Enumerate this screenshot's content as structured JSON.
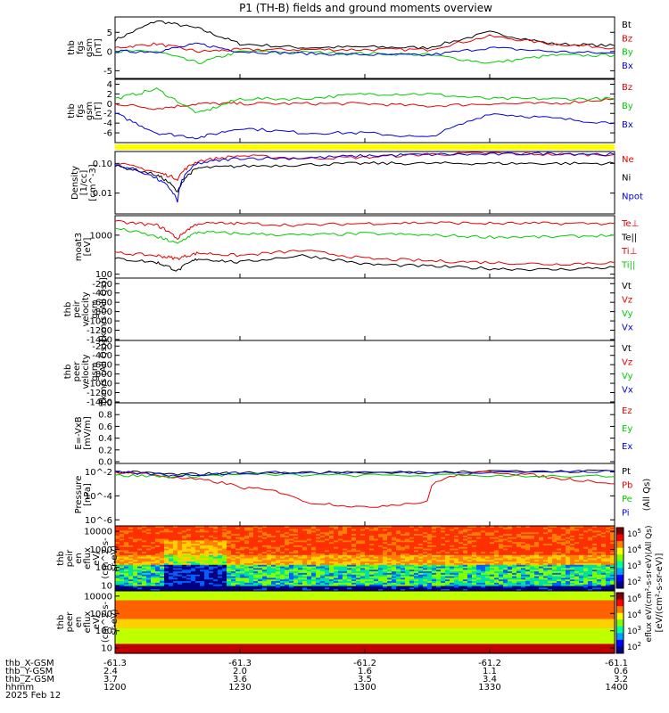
{
  "title": "P1 (TH-B) fields and ground moments overview",
  "colors": {
    "black": "#000000",
    "red": "#e60000",
    "green": "#00cc00",
    "blue": "#0000e6",
    "yellow": "#ffff00"
  },
  "panels": [
    {
      "id": "fgs",
      "ylabel": [
        "thb",
        "fgs",
        "gsm",
        "[nT]"
      ],
      "ticks": [
        "5",
        "0",
        "-5"
      ],
      "tickvals": [
        5,
        0,
        -5
      ],
      "ylim": [
        -7,
        9
      ],
      "log": false,
      "legend": [
        {
          "t": "Bt",
          "c": "black"
        },
        {
          "t": "Bz",
          "c": "red"
        },
        {
          "t": "By",
          "c": "green"
        },
        {
          "t": "Bx",
          "c": "blue"
        }
      ]
    },
    {
      "id": "fgm",
      "ylabel": [
        "thb",
        "fgs",
        "gsm",
        "[nT]"
      ],
      "ticks": [
        "4",
        "2",
        "0",
        "-2",
        "-4",
        "-6"
      ],
      "tickvals": [
        4,
        2,
        0,
        -2,
        -4,
        -6
      ],
      "ylim": [
        -8,
        5
      ],
      "log": false,
      "legend": [
        {
          "t": "Bz",
          "c": "red"
        },
        {
          "t": "By",
          "c": "green"
        },
        {
          "t": "Bx",
          "c": "blue"
        }
      ]
    },
    {
      "id": "density",
      "ylabel": [
        "Density",
        "[1/cc]",
        "[cm^-3]"
      ],
      "ticks": [
        "0.10",
        "0.01"
      ],
      "tickvals": [
        -1,
        -2
      ],
      "ylim": [
        -2.7,
        -0.6
      ],
      "log": true,
      "legend": [
        {
          "t": "Ne",
          "c": "red"
        },
        {
          "t": "Ni",
          "c": "black"
        },
        {
          "t": "Npot",
          "c": "blue"
        }
      ]
    },
    {
      "id": "temp",
      "ylabel": [
        "moat3",
        "[eV]"
      ],
      "ticks": [
        "1000",
        "100"
      ],
      "tickvals": [
        3,
        2
      ],
      "ylim": [
        1.9,
        3.5
      ],
      "log": true,
      "legend": [
        {
          "t": "Te⊥",
          "c": "red"
        },
        {
          "t": "Te||",
          "c": "black"
        },
        {
          "t": "Ti⊥",
          "c": "red"
        },
        {
          "t": "Ti||",
          "c": "green"
        }
      ]
    },
    {
      "id": "vion",
      "ylabel": [
        "thb",
        "peir",
        "velocity",
        "gsm",
        "[km/s (All Qs)]"
      ],
      "ticks": [
        "-200",
        "-400",
        "-600",
        "-800",
        "-1000",
        "-1200",
        "-1400"
      ],
      "tickvals": [
        -200,
        -400,
        -600,
        -800,
        -1000,
        -1200,
        -1400
      ],
      "ylim": [
        -1420,
        -80
      ],
      "log": false,
      "legend": [
        {
          "t": "Vt",
          "c": "black"
        },
        {
          "t": "Vz",
          "c": "red"
        },
        {
          "t": "Vy",
          "c": "green"
        },
        {
          "t": "Vx",
          "c": "blue"
        }
      ]
    },
    {
      "id": "velec",
      "ylabel": [
        "thb",
        "peer",
        "velocity",
        "gsm",
        "[km/s (All Qs)]"
      ],
      "ticks": [
        "-200",
        "-400",
        "-600",
        "-800",
        "-1000",
        "-1200",
        "-1400"
      ],
      "tickvals": [
        -200,
        -400,
        -600,
        -800,
        -1000,
        -1200,
        -1400
      ],
      "ylim": [
        -1420,
        -80
      ],
      "log": false,
      "legend": [
        {
          "t": "Vt",
          "c": "black"
        },
        {
          "t": "Vz",
          "c": "red"
        },
        {
          "t": "Vy",
          "c": "green"
        },
        {
          "t": "Vx",
          "c": "blue"
        }
      ]
    },
    {
      "id": "efield",
      "ylabel": [
        "E=-VxB",
        "[mV/m]"
      ],
      "ticks": [
        "1.0",
        "0.8",
        "0.6",
        "0.4",
        "0.2",
        "0.0"
      ],
      "tickvals": [
        1.0,
        0.8,
        0.6,
        0.4,
        0.2,
        0.0
      ],
      "ylim": [
        -0.03,
        1.0
      ],
      "log": false,
      "legend": [
        {
          "t": "Ez",
          "c": "red"
        },
        {
          "t": "Ey",
          "c": "green"
        },
        {
          "t": "Ex",
          "c": "blue"
        }
      ]
    },
    {
      "id": "pressure",
      "ylabel": [
        "Pressure",
        "[nPa]"
      ],
      "ticks": [
        "10^-2",
        "10^-4",
        "10^-6"
      ],
      "tickvals": [
        -2,
        -4,
        -6
      ],
      "ylim": [
        -6.5,
        -1.3
      ],
      "log": true,
      "legend": [
        {
          "t": "Pt",
          "c": "black"
        },
        {
          "t": "Pb",
          "c": "red"
        },
        {
          "t": "Pe",
          "c": "green"
        },
        {
          "t": "Pi",
          "c": "blue"
        }
      ]
    },
    {
      "id": "ion_spec",
      "ylabel": [
        "thb",
        "peir",
        "en",
        "eflux",
        "eV/",
        "(cm^2-s-",
        "sr-eV)"
      ],
      "ticks": [
        "10000",
        "1000",
        "100",
        "10"
      ],
      "tickvals": [
        4,
        3,
        2,
        1
      ],
      "ylim": [
        0.7,
        4.3
      ],
      "log": true,
      "legend": []
    },
    {
      "id": "elec_spec",
      "ylabel": [
        "thb",
        "peer",
        "en",
        "eflux",
        "eV/",
        "(cm^2-s-",
        "sr-eV)"
      ],
      "ticks": [
        "10000",
        "1000",
        "100",
        "10"
      ],
      "tickvals": [
        4,
        3,
        2,
        1
      ],
      "ylim": [
        0.7,
        4.3
      ],
      "log": true,
      "legend": []
    }
  ],
  "side_text": {
    "pressure": "(All Qs)",
    "ion_spec": "eflux eV/(cm²-s-sr-eV)(All Qs)",
    "colorbar": "[eV/(cm²-s-sr-eV)]"
  },
  "colorbars": [
    {
      "ticks": [
        "10^5",
        "10^4",
        "10^3",
        "10^2"
      ]
    },
    {
      "ticks": [
        "10^6",
        "10^4",
        "10^3",
        "10^2"
      ]
    }
  ],
  "ephemeris": {
    "row_labels": [
      "thb_X-GSM",
      "thb_Y-GSM",
      "thb_Z-GSM",
      "hhmm",
      "2025 Feb 12"
    ],
    "columns": [
      [
        "-61.3",
        "2.4",
        "3.7",
        "1200"
      ],
      [
        "-61.3",
        "2.0",
        "3.6",
        "1230"
      ],
      [
        "-61.2",
        "1.6",
        "3.5",
        "1300"
      ],
      [
        "-61.2",
        "1.1",
        "3.4",
        "1330"
      ],
      [
        "-61.1",
        "0.6",
        "3.2",
        "1400"
      ]
    ]
  },
  "chart_data": {
    "type": "line",
    "title": "P1 (TH-B) fields and ground moments overview",
    "date": "2025 Feb 12",
    "x_range": [
      "12:00",
      "14:00"
    ],
    "x_ticks": [
      "1200",
      "1230",
      "1300",
      "1330",
      "1400"
    ],
    "series": [
      {
        "panel": "fgs",
        "name": "Bt",
        "x": [
          "12:00",
          "12:10",
          "12:20",
          "12:30",
          "12:45",
          "13:00",
          "13:15",
          "13:30",
          "13:45",
          "14:00"
        ],
        "y": [
          3,
          8,
          6,
          2,
          1,
          1.2,
          1,
          5,
          2,
          1.5
        ]
      },
      {
        "panel": "fgs",
        "name": "Bz",
        "x": [
          "12:00",
          "12:10",
          "12:20",
          "12:30",
          "12:45",
          "13:00",
          "13:15",
          "13:30",
          "13:45",
          "14:00"
        ],
        "y": [
          1,
          2,
          0,
          0.5,
          0.5,
          0.5,
          0.5,
          4,
          2,
          1
        ]
      },
      {
        "panel": "fgs",
        "name": "By",
        "x": [
          "12:00",
          "12:10",
          "12:20",
          "12:30",
          "12:45",
          "13:00",
          "13:15",
          "13:30",
          "13:45",
          "14:00"
        ],
        "y": [
          0,
          0,
          -3,
          0,
          -0.2,
          -0.5,
          -0.8,
          -3,
          -1,
          -1
        ]
      },
      {
        "panel": "fgs",
        "name": "Bx",
        "x": [
          "12:00",
          "12:10",
          "12:20",
          "12:30",
          "12:45",
          "13:00",
          "13:15",
          "13:30",
          "13:45",
          "14:00"
        ],
        "y": [
          0,
          0,
          2,
          0,
          -0.5,
          -0.8,
          -1,
          1,
          0,
          -0.5
        ]
      },
      {
        "panel": "fgm",
        "name": "Bz",
        "x": [
          "12:00",
          "12:10",
          "12:20",
          "12:30",
          "12:45",
          "13:00",
          "13:15",
          "13:30",
          "13:45",
          "14:00"
        ],
        "y": [
          0,
          -1,
          0,
          0,
          0,
          0,
          -0.5,
          0,
          0,
          1
        ]
      },
      {
        "panel": "fgm",
        "name": "By",
        "x": [
          "12:00",
          "12:10",
          "12:20",
          "12:30",
          "12:45",
          "13:00",
          "13:15",
          "13:30",
          "13:45",
          "14:00"
        ],
        "y": [
          1,
          3,
          -2,
          1,
          1,
          2,
          2,
          1,
          1,
          1
        ]
      },
      {
        "panel": "fgm",
        "name": "Bx",
        "x": [
          "12:00",
          "12:10",
          "12:20",
          "12:30",
          "12:45",
          "13:00",
          "13:15",
          "13:30",
          "13:45",
          "14:00"
        ],
        "y": [
          -2,
          -6,
          -7,
          -5,
          -6,
          -6,
          -7,
          -2,
          -3,
          -4
        ]
      },
      {
        "panel": "density",
        "name": "Ne",
        "x": [
          "12:00",
          "12:10",
          "12:15",
          "12:20",
          "12:30",
          "12:45",
          "13:00",
          "13:15",
          "13:30",
          "13:45",
          "14:00"
        ],
        "y": [
          0.1,
          0.05,
          0.03,
          0.12,
          0.18,
          0.15,
          0.16,
          0.2,
          0.22,
          0.2,
          0.2
        ]
      },
      {
        "panel": "density",
        "name": "Ni",
        "x": [
          "12:00",
          "12:10",
          "12:15",
          "12:20",
          "12:30",
          "12:45",
          "13:00",
          "13:15",
          "13:30",
          "13:45",
          "14:00"
        ],
        "y": [
          0.08,
          0.04,
          0.01,
          0.07,
          0.08,
          0.09,
          0.1,
          0.1,
          0.1,
          0.1,
          0.1
        ]
      },
      {
        "panel": "density",
        "name": "Npot",
        "x": [
          "12:00",
          "12:10",
          "12:15",
          "12:20",
          "12:30",
          "12:45",
          "13:00",
          "13:15",
          "13:30",
          "13:45",
          "14:00"
        ],
        "y": [
          0.09,
          0.03,
          0.005,
          0.1,
          0.15,
          0.15,
          0.18,
          0.2,
          0.2,
          0.22,
          0.2
        ]
      },
      {
        "panel": "temp",
        "name": "Te⊥",
        "x": [
          "12:00",
          "12:10",
          "12:15",
          "12:20",
          "12:30",
          "12:45",
          "13:00",
          "13:15",
          "13:30",
          "13:45",
          "14:00"
        ],
        "y": [
          350,
          300,
          250,
          350,
          300,
          400,
          250,
          220,
          200,
          180,
          200
        ]
      },
      {
        "panel": "temp",
        "name": "Te||",
        "x": [
          "12:00",
          "12:10",
          "12:15",
          "12:20",
          "12:30",
          "12:45",
          "13:00",
          "13:15",
          "13:30",
          "13:45",
          "14:00"
        ],
        "y": [
          250,
          200,
          120,
          250,
          200,
          300,
          180,
          160,
          140,
          130,
          150
        ]
      },
      {
        "panel": "temp",
        "name": "Ti||",
        "x": [
          "12:00",
          "12:10",
          "12:15",
          "12:20",
          "12:30",
          "12:45",
          "13:00",
          "13:15",
          "13:30",
          "13:45",
          "14:00"
        ],
        "y": [
          1500,
          900,
          600,
          1200,
          1100,
          1000,
          1100,
          1000,
          900,
          900,
          1000
        ]
      },
      {
        "panel": "temp",
        "name": "Ti⊥",
        "x": [
          "12:00",
          "12:10",
          "12:15",
          "12:20",
          "12:30",
          "12:45",
          "13:00",
          "13:15",
          "13:30",
          "13:45",
          "14:00"
        ],
        "y": [
          2200,
          1800,
          800,
          2000,
          2000,
          1800,
          2000,
          2100,
          2000,
          2000,
          2000
        ]
      },
      {
        "panel": "pressure",
        "name": "Pt",
        "x": [
          "12:00",
          "12:15",
          "12:30",
          "13:00",
          "13:30",
          "14:00"
        ],
        "y": [
          0.01,
          0.006,
          0.008,
          0.009,
          0.01,
          0.012
        ]
      },
      {
        "panel": "pressure",
        "name": "Pb",
        "x": [
          "12:00",
          "12:15",
          "12:30",
          "12:45",
          "13:00",
          "13:15",
          "13:30",
          "13:45",
          "14:00"
        ],
        "y": [
          0.01,
          0.003,
          0.0005,
          3e-05,
          1e-05,
          3e-05,
          0.01,
          0.003,
          0.001
        ]
      },
      {
        "panel": "pressure",
        "name": "Pe",
        "x": [
          "12:00",
          "12:15",
          "12:30",
          "13:00",
          "13:30",
          "14:00"
        ],
        "y": [
          0.005,
          0.004,
          0.006,
          0.005,
          0.005,
          0.004
        ]
      },
      {
        "panel": "pressure",
        "name": "Pi",
        "x": [
          "12:00",
          "12:15",
          "12:30",
          "13:00",
          "13:30",
          "14:00"
        ],
        "y": [
          0.009,
          0.005,
          0.008,
          0.009,
          0.01,
          0.011
        ]
      }
    ]
  }
}
